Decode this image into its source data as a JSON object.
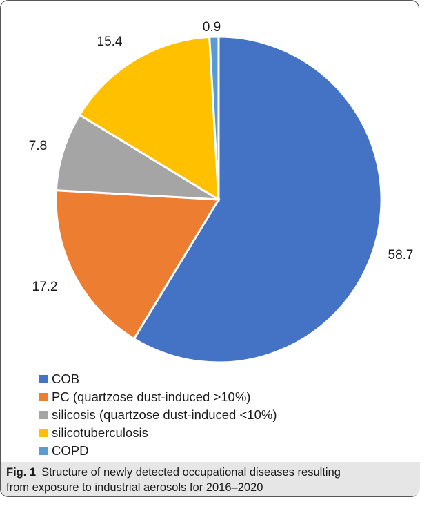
{
  "chart_data": {
    "type": "pie",
    "slices": [
      {
        "label": "COB",
        "value": 58.7,
        "display": "58.7",
        "color": "#4472C4"
      },
      {
        "label": "PC (quartzose dust-induced >10%)",
        "value": 17.2,
        "display": "17.2",
        "color": "#ED7D31"
      },
      {
        "label": "silicosis (quartzose dust-induced <10%)",
        "value": 7.8,
        "display": "7.8",
        "color": "#A5A5A5"
      },
      {
        "label": "silicotuberculosis",
        "value": 15.4,
        "display": "15.4",
        "color": "#FFC000"
      },
      {
        "label": "COPD",
        "value": 0.9,
        "display": "0.9",
        "color": "#5B9BD5"
      }
    ],
    "legend_position": "bottom-left",
    "start_angle": "top",
    "direction": "clockwise"
  },
  "caption": {
    "fig_label": "Fig. 1",
    "text_line1": "Structure of newly detected occupational diseases resulting",
    "text_line2": "from exposure to industrial aerosols for 2016–2020"
  }
}
